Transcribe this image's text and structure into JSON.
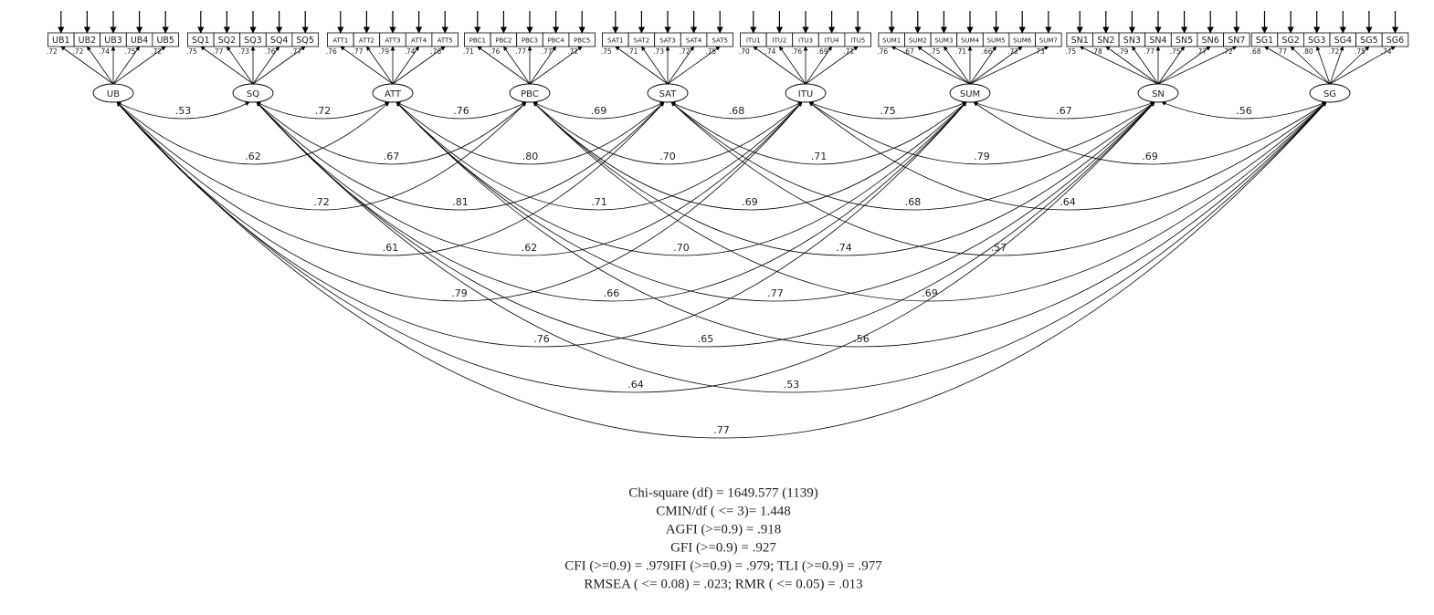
{
  "factors": [
    {
      "label": "UB",
      "indicators": [
        "UB1",
        "UB2",
        "UB3",
        "UB4",
        "UB5"
      ],
      "loadings": [
        ".72",
        ".72",
        ".74",
        ".75",
        ".72"
      ],
      "correlations": [
        ".53",
        ".62",
        ".72",
        ".61",
        ".79",
        ".76",
        ".64",
        ".77"
      ]
    },
    {
      "label": "SQ",
      "indicators": [
        "SQ1",
        "SQ2",
        "SQ3",
        "SQ4",
        "SQ5"
      ],
      "loadings": [
        ".75",
        ".77",
        ".73",
        ".76",
        ".77"
      ],
      "correlations": [
        ".72",
        ".67",
        ".81",
        ".62",
        ".66",
        ".65",
        ".53"
      ]
    },
    {
      "label": "ATT",
      "indicators": [
        "ATT1",
        "ATT2",
        "ATT3",
        "ATT4",
        "ATT5"
      ],
      "loadings": [
        ".76",
        ".77",
        ".79",
        ".74",
        ".76"
      ],
      "correlations": [
        ".76",
        ".80",
        ".71",
        ".70",
        ".77",
        ".56"
      ]
    },
    {
      "label": "PBC",
      "indicators": [
        "PBC1",
        "PBC2",
        "PBC3",
        "PBC4",
        "PBC5"
      ],
      "loadings": [
        ".71",
        ".76",
        ".77",
        ".77",
        ".72"
      ],
      "correlations": [
        ".69",
        ".70",
        ".69",
        ".74",
        ".69"
      ]
    },
    {
      "label": "SAT",
      "indicators": [
        "SAT1",
        "SAT2",
        "SAT3",
        "SAT4",
        "SAT5"
      ],
      "loadings": [
        ".75",
        ".71",
        ".73",
        ".72",
        ".75"
      ],
      "correlations": [
        ".68",
        ".71",
        ".68",
        ".57"
      ]
    },
    {
      "label": "ITU",
      "indicators": [
        "ITU1",
        "ITU2",
        "ITU3",
        "ITU4",
        "ITU5"
      ],
      "loadings": [
        ".70",
        ".74",
        ".76",
        ".69",
        ".71"
      ],
      "correlations": [
        ".75",
        ".79",
        ".64"
      ]
    },
    {
      "label": "SUM",
      "indicators": [
        "SUM1",
        "SUM2",
        "SUM3",
        "SUM4",
        "SUM5",
        "SUM6",
        "SUM7"
      ],
      "loadings": [
        ".76",
        ".67",
        ".75",
        ".71",
        ".66",
        ".72",
        ".73"
      ],
      "correlations": [
        ".67",
        ".69"
      ]
    },
    {
      "label": "SN",
      "indicators": [
        "SN1",
        "SN2",
        "SN3",
        "SN4",
        "SN5",
        "SN6",
        "SN7"
      ],
      "loadings": [
        ".75",
        ".78",
        ".79",
        ".77",
        ".75",
        ".77",
        ".72"
      ],
      "correlations": [
        ".56"
      ]
    },
    {
      "label": "SG",
      "indicators": [
        "SG1",
        "SG2",
        "SG3",
        "SG4",
        "SG5",
        "SG6"
      ],
      "loadings": [
        ".68",
        ".77",
        ".80",
        ".72",
        ".75",
        ".74"
      ],
      "correlations": []
    }
  ],
  "fit_statistics": [
    "Chi-square (df) = 1649.577 (1139)",
    "CMIN/df ( <= 3)= 1.448",
    "AGFI (>=0.9) = .918",
    "GFI (>=0.9) = .927",
    "CFI (>=0.9) = .979IFI (>=0.9) = .979; TLI (>=0.9) = .977",
    "RMSEA ( <= 0.08) = .023; RMR ( <= 0.05) = .013"
  ]
}
